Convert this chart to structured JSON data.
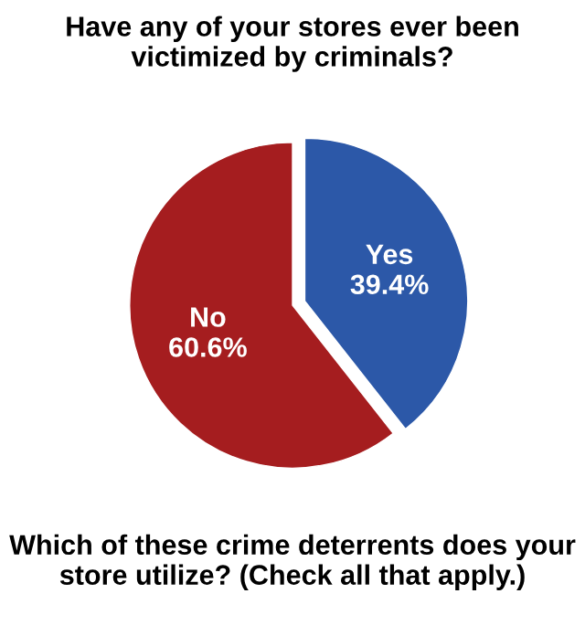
{
  "chart_data": {
    "type": "pie",
    "title": "Have any of your stores ever been victimized by criminals?",
    "categories": [
      "Yes",
      "No"
    ],
    "values": [
      39.4,
      60.6
    ],
    "value_labels": [
      "39.4%",
      "60.6%"
    ],
    "colors": [
      "#2c58a8",
      "#a51d1f"
    ],
    "annotations": [
      "Which of these crime deterrents does your store utilize? (Check all that apply.)"
    ]
  }
}
